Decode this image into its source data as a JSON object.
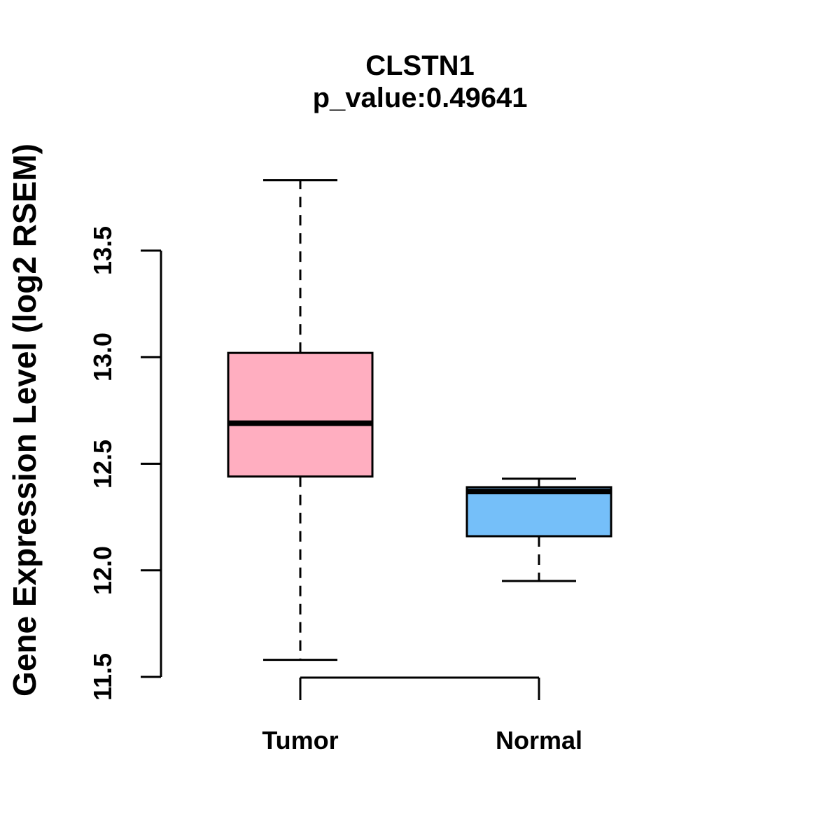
{
  "header": {
    "title": "CLSTN1",
    "subtitle": "p_value:0.49641"
  },
  "chart_data": {
    "type": "boxplot",
    "title": "CLSTN1",
    "subtitle": "p_value:0.49641",
    "xlabel": "",
    "ylabel": "Gene Expression Level (log2 RSEM)",
    "ylim": [
      11.5,
      13.5
    ],
    "yticks": [
      13.5,
      13.0,
      12.5,
      12.0,
      11.5
    ],
    "ytick_labels": [
      "13.5",
      "13.0",
      "12.5",
      "12.0",
      "11.5"
    ],
    "categories": [
      "Tumor",
      "Normal"
    ],
    "grid": false,
    "legend": "none",
    "series": [
      {
        "name": "Tumor",
        "whisker_low": 11.58,
        "q1": 12.44,
        "median": 12.69,
        "q3": 13.02,
        "whisker_high": 13.83,
        "fill_color": "#FFAEC0"
      },
      {
        "name": "Normal",
        "whisker_low": 11.95,
        "q1": 12.16,
        "median": 12.37,
        "q3": 12.39,
        "whisker_high": 12.43,
        "fill_color": "#75BFF9"
      }
    ],
    "colors": {
      "box_border": "#000000",
      "median_line": "#000000",
      "axis": "#000000",
      "background": "#FFFFFF"
    }
  }
}
